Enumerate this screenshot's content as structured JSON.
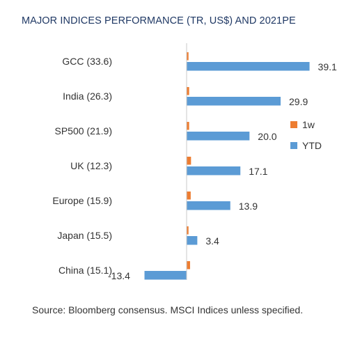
{
  "title": "MAJOR INDICES PERFORMANCE (TR, US$) AND 2021PE",
  "source": "Source: Bloomberg consensus. MSCI Indices unless specified.",
  "chart_data": {
    "type": "bar",
    "orientation": "horizontal",
    "categories": [
      "GCC (33.6)",
      "India (26.3)",
      "SP500 (21.9)",
      "UK (12.3)",
      "Europe (15.9)",
      "Japan (15.5)",
      "China (15.1)"
    ],
    "series": [
      {
        "name": "1w",
        "color": "#ed7d31",
        "values": [
          0.6,
          0.8,
          0.8,
          1.4,
          1.3,
          0.6,
          1.1
        ]
      },
      {
        "name": "YTD",
        "color": "#5b9bd5",
        "values": [
          39.1,
          29.9,
          20.0,
          17.1,
          13.9,
          3.4,
          -13.4
        ]
      }
    ],
    "data_labels": [
      "39.1",
      "29.9",
      "20.0",
      "17.1",
      "13.9",
      "3.4",
      "-13.4"
    ],
    "legend_position": "right",
    "grid": false
  }
}
